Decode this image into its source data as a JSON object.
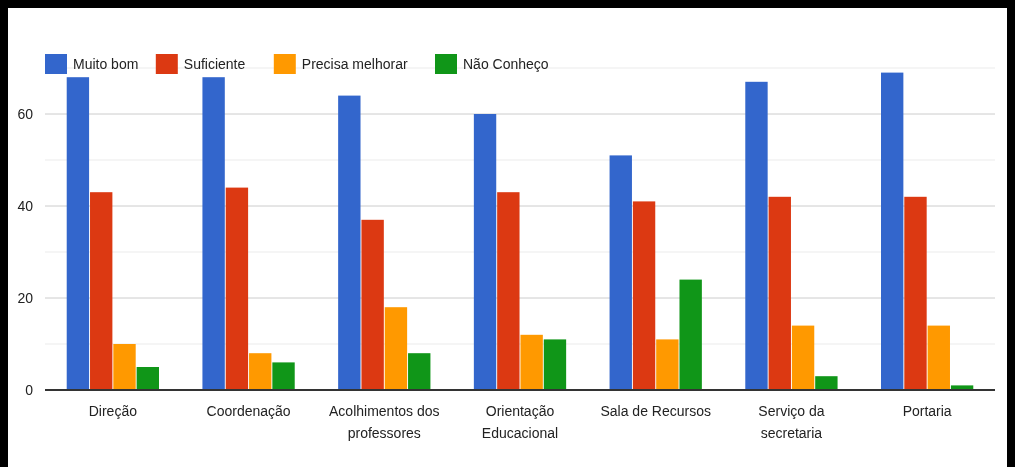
{
  "chart_data": {
    "type": "bar",
    "categories": [
      "Direção",
      "Coordenação",
      "Acolhimentos dos professores",
      "Orientação Educacional",
      "Sala de Recursos",
      "Serviço da secretaria",
      "Portaria"
    ],
    "series": [
      {
        "name": "Muito bom",
        "color": "#3366cc",
        "values": [
          68,
          68,
          64,
          60,
          51,
          67,
          69
        ]
      },
      {
        "name": "Suficiente",
        "color": "#dc3912",
        "values": [
          43,
          44,
          37,
          43,
          41,
          42,
          42
        ]
      },
      {
        "name": "Precisa melhorar",
        "color": "#ff9900",
        "values": [
          10,
          8,
          18,
          12,
          11,
          14,
          14
        ]
      },
      {
        "name": "Não Conheço",
        "color": "#109618",
        "values": [
          5,
          6,
          8,
          11,
          24,
          3,
          1
        ]
      }
    ],
    "ylim": [
      0,
      70
    ],
    "yticks": [
      0,
      {
        "value": 10,
        "label": null
      },
      20,
      {
        "value": 30,
        "label": null
      },
      40,
      {
        "value": 50,
        "label": null
      },
      60,
      {
        "value": 70,
        "label": null
      }
    ],
    "grid": true,
    "legend": "top left"
  }
}
